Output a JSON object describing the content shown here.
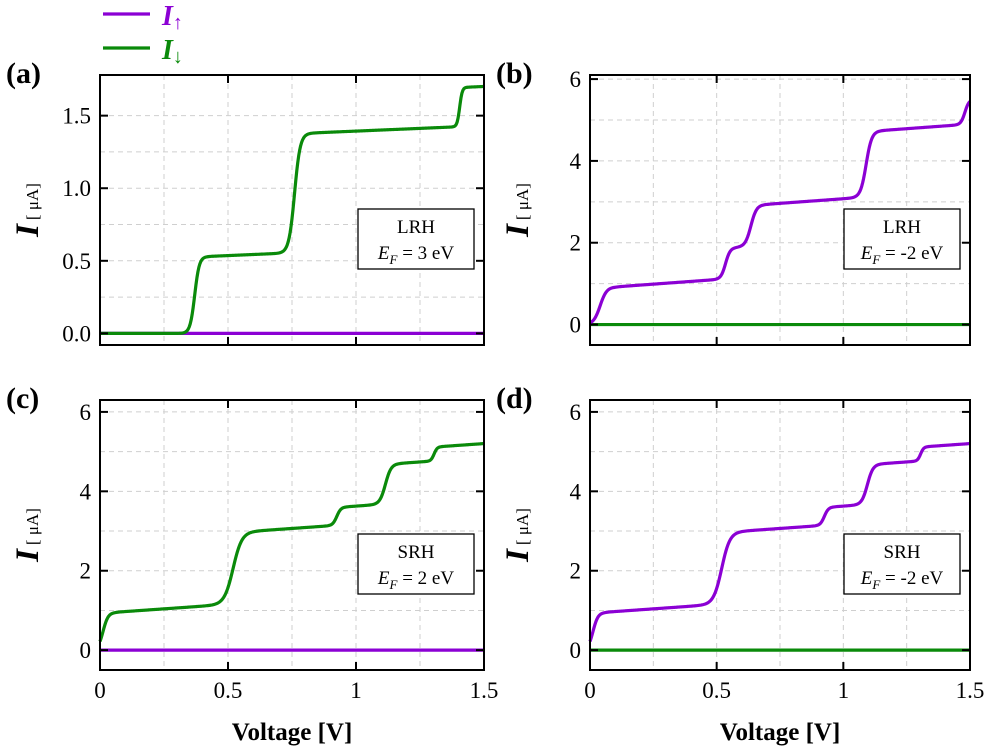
{
  "colors": {
    "I_up": "#8b00d4",
    "I_down": "#0a8a0a",
    "grid": "#cfcfcf",
    "axis": "#000000"
  },
  "legend": {
    "entries": [
      {
        "symbol": "I",
        "arrow": "↑",
        "series": "I_up"
      },
      {
        "symbol": "I",
        "arrow": "↓",
        "series": "I_down"
      }
    ]
  },
  "xlabel": "Voltage [V]",
  "chart_data": [
    {
      "panel": "(a)",
      "type": "line",
      "ylabel": "I",
      "yunit": "[ μA]",
      "xlim": [
        0,
        1.5
      ],
      "ylim": [
        -0.08,
        1.78
      ],
      "xticks": [
        0,
        0.5,
        1,
        1.5
      ],
      "xtick_labels": [
        "0",
        "0.5",
        "1",
        "1.5"
      ],
      "yticks": [
        0,
        0.5,
        1.0,
        1.5
      ],
      "ytick_labels": [
        "0.0",
        "0.5",
        "1.0",
        "1.5"
      ],
      "annotation": {
        "line1": "LRH",
        "line2_var": "E",
        "line2_sub": "F",
        "line2_rest": " = 3 eV"
      },
      "show_xtick_labels": false,
      "series": [
        {
          "name": "I_up",
          "model": {
            "base": 0,
            "steps": []
          }
        },
        {
          "name": "I_down",
          "model": {
            "base": 0,
            "steps": [
              [
                0.53,
                0.37,
                0.009
              ],
              [
                0.82,
                0.76,
                0.011
              ],
              [
                0.27,
                1.405,
                0.005
              ]
            ],
            "slope": 0.075,
            "slope_start": 0.42
          }
        }
      ]
    },
    {
      "panel": "(b)",
      "type": "line",
      "ylabel": "I",
      "yunit": "[ μA]",
      "xlim": [
        0,
        1.5
      ],
      "ylim": [
        -0.5,
        6.1
      ],
      "xticks": [
        0,
        0.5,
        1,
        1.5
      ],
      "xtick_labels": [
        "0",
        "0.5",
        "1",
        "1.5"
      ],
      "yticks": [
        0,
        2,
        4,
        6
      ],
      "ytick_labels": [
        "0",
        "2",
        "4",
        "6"
      ],
      "annotation": {
        "line1": "LRH",
        "line2_var": "E",
        "line2_sub": "F",
        "line2_rest": " = -2 eV"
      },
      "show_xtick_labels": false,
      "series": [
        {
          "name": "I_down",
          "model": {
            "base": 0,
            "steps": []
          }
        },
        {
          "name": "I_up",
          "model": {
            "base": 0,
            "steps": [
              [
                0.92,
                0.04,
                0.013
              ],
              [
                0.75,
                0.535,
                0.009
              ],
              [
                1.0,
                0.635,
                0.011
              ],
              [
                1.6,
                1.09,
                0.011
              ],
              [
                0.6,
                1.48,
                0.008
              ]
            ],
            "slope": 0.45,
            "slope_start": 0.1
          }
        }
      ]
    },
    {
      "panel": "(c)",
      "type": "line",
      "ylabel": "I",
      "yunit": "[ μA]",
      "xlim": [
        0,
        1.5
      ],
      "ylim": [
        -0.5,
        6.3
      ],
      "xticks": [
        0,
        0.5,
        1,
        1.5
      ],
      "xtick_labels": [
        "0",
        "0.5",
        "1",
        "1.5"
      ],
      "yticks": [
        0,
        2,
        4,
        6
      ],
      "ytick_labels": [
        "0",
        "2",
        "4",
        "6"
      ],
      "annotation": {
        "line1": "SRH",
        "line2_var": "E",
        "line2_sub": "F",
        "line2_rest": " = 2 eV"
      },
      "show_xtick_labels": true,
      "series": [
        {
          "name": "I_up",
          "model": {
            "base": 0,
            "steps": []
          }
        },
        {
          "name": "I_down",
          "model": {
            "base": 0,
            "steps": [
              [
                0.95,
                0.012,
                0.01
              ],
              [
                1.8,
                0.52,
                0.017
              ],
              [
                0.45,
                0.925,
                0.008
              ],
              [
                1.0,
                1.115,
                0.011
              ],
              [
                0.35,
                1.305,
                0.006
              ]
            ],
            "slope": 0.45,
            "slope_start": 0.05
          }
        }
      ]
    },
    {
      "panel": "(d)",
      "type": "line",
      "ylabel": "I",
      "yunit": "[ μA]",
      "xlim": [
        0,
        1.5
      ],
      "ylim": [
        -0.5,
        6.3
      ],
      "xticks": [
        0,
        0.5,
        1,
        1.5
      ],
      "xtick_labels": [
        "0",
        "0.5",
        "1",
        "1.5"
      ],
      "yticks": [
        0,
        2,
        4,
        6
      ],
      "ytick_labels": [
        "0",
        "2",
        "4",
        "6"
      ],
      "annotation": {
        "line1": "SRH",
        "line2_var": "E",
        "line2_sub": "F",
        "line2_rest": " = -2 eV"
      },
      "show_xtick_labels": true,
      "series": [
        {
          "name": "I_down",
          "model": {
            "base": 0,
            "steps": []
          }
        },
        {
          "name": "I_up",
          "model": {
            "base": 0,
            "steps": [
              [
                0.95,
                0.012,
                0.01
              ],
              [
                1.8,
                0.52,
                0.016
              ],
              [
                0.45,
                0.925,
                0.008
              ],
              [
                1.0,
                1.095,
                0.011
              ],
              [
                0.35,
                1.305,
                0.006
              ]
            ],
            "slope": 0.45,
            "slope_start": 0.05
          }
        }
      ]
    }
  ]
}
